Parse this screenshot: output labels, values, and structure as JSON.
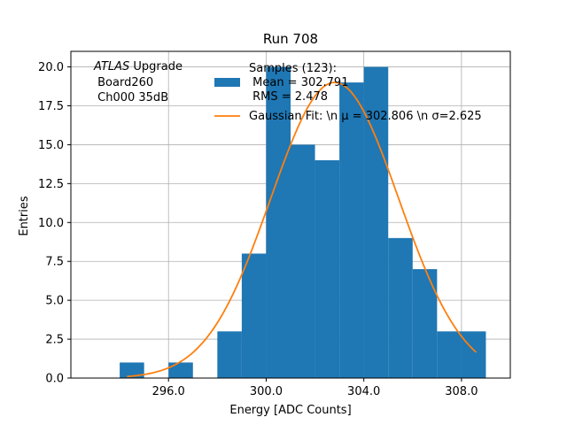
{
  "chart_data": {
    "type": "bar",
    "title": "Run 708",
    "xlabel": "Energy [ADC Counts]",
    "ylabel": "Entries",
    "xlim": [
      292.0,
      310.0
    ],
    "ylim": [
      0,
      21
    ],
    "x_ticks": [
      296.0,
      300.0,
      304.0,
      308.0
    ],
    "x_tick_labels": [
      "296.0",
      "300.0",
      "304.0",
      "308.0"
    ],
    "y_ticks": [
      0,
      2.5,
      5,
      7.5,
      10,
      12.5,
      15,
      17.5,
      20
    ],
    "y_tick_labels": [
      "0.0",
      "2.5",
      "5.0",
      "7.5",
      "10.0",
      "12.5",
      "15.0",
      "17.5",
      "20.0"
    ],
    "grid": true,
    "annotation": {
      "prefix": "ATLAS",
      "suffix": " Upgrade",
      "lines": [
        " Board260",
        " Ch000 35dB"
      ]
    },
    "bins": [
      {
        "x0": 294,
        "x1": 295,
        "count": 1
      },
      {
        "x0": 295,
        "x1": 296,
        "count": 0
      },
      {
        "x0": 296,
        "x1": 297,
        "count": 1
      },
      {
        "x0": 297,
        "x1": 298,
        "count": 0
      },
      {
        "x0": 298,
        "x1": 299,
        "count": 3
      },
      {
        "x0": 299,
        "x1": 300,
        "count": 8
      },
      {
        "x0": 300,
        "x1": 301,
        "count": 20
      },
      {
        "x0": 301,
        "x1": 302,
        "count": 15
      },
      {
        "x0": 302,
        "x1": 303,
        "count": 14
      },
      {
        "x0": 303,
        "x1": 304,
        "count": 19
      },
      {
        "x0": 304,
        "x1": 305,
        "count": 20
      },
      {
        "x0": 305,
        "x1": 306,
        "count": 9
      },
      {
        "x0": 306,
        "x1": 307,
        "count": 7
      },
      {
        "x0": 307,
        "x1": 308,
        "count": 3
      },
      {
        "x0": 308,
        "x1": 309,
        "count": 3
      }
    ],
    "fit": {
      "type": "gaussian",
      "mu": 302.806,
      "sigma": 2.625,
      "amplitude": 19.0,
      "x_range": [
        294.3,
        308.6
      ]
    },
    "legend": {
      "placement": "top-right",
      "entries": [
        {
          "kind": "patch",
          "color": "#1f77b4",
          "lines": [
            "Samples (123):",
            " Mean = 302.791",
            " RMS = 2.478"
          ]
        },
        {
          "kind": "line",
          "color": "#ff7f0e",
          "text": "Gaussian Fit: \\n μ = 302.806 \\n σ=2.625"
        }
      ]
    },
    "colors": {
      "bars": "#1f77b4",
      "fit": "#ff7f0e",
      "grid": "#b0b0b0"
    }
  }
}
